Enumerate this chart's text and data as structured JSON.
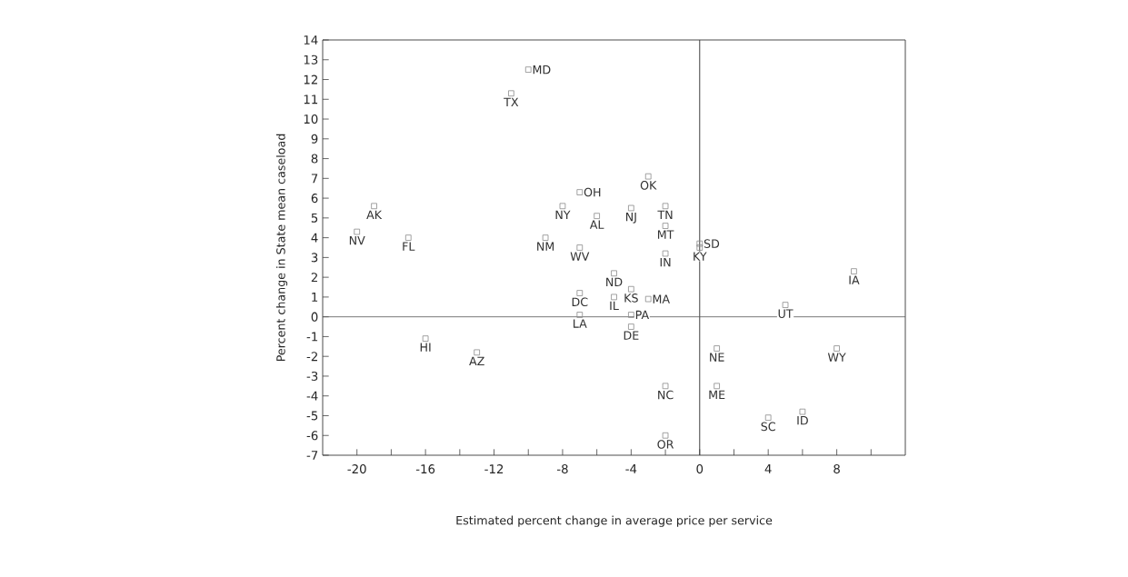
{
  "chart_data": {
    "type": "scatter",
    "xlabel": "Estimated percent change in average price per service",
    "ylabel": "Percent change in State mean caseload",
    "series": [
      {
        "color": "#8a8a8a",
        "x": [
          -19,
          -20,
          -17,
          -16,
          -13,
          -11,
          -10,
          -9,
          -8,
          -7,
          -6,
          -7,
          -7,
          -7,
          -5,
          -5,
          -4,
          -4,
          -4,
          -3,
          -4,
          -3,
          -2,
          -2,
          -2,
          -2,
          -2,
          0,
          0,
          1,
          1,
          4,
          6,
          5,
          8,
          9
        ],
        "values": [
          5.6,
          4.3,
          4.0,
          -1.1,
          -1.8,
          11.3,
          12.5,
          4.0,
          5.6,
          6.3,
          5.1,
          3.5,
          1.2,
          0.1,
          2.2,
          1.0,
          1.4,
          0.1,
          -0.5,
          0.9,
          5.5,
          7.1,
          5.6,
          4.6,
          3.2,
          -3.5,
          -6.0,
          3.7,
          3.5,
          -1.6,
          -3.5,
          -5.1,
          -4.8,
          0.6,
          -1.6,
          2.3
        ]
      }
    ],
    "annotations": [
      {
        "text": "AK",
        "x": -19,
        "y": 5.6
      },
      {
        "text": "NV",
        "x": -20,
        "y": 4.3
      },
      {
        "text": "FL",
        "x": -17,
        "y": 4.0
      },
      {
        "text": "HI",
        "x": -16,
        "y": -1.1
      },
      {
        "text": "AZ",
        "x": -13,
        "y": -1.8
      },
      {
        "text": "TX",
        "x": -11,
        "y": 11.3
      },
      {
        "text": "MD",
        "x": -10,
        "y": 12.5
      },
      {
        "text": "NM",
        "x": -9,
        "y": 4.0
      },
      {
        "text": "NY",
        "x": -8,
        "y": 5.6
      },
      {
        "text": "OH",
        "x": -7,
        "y": 6.3
      },
      {
        "text": "AL",
        "x": -6,
        "y": 5.1
      },
      {
        "text": "WV",
        "x": -7,
        "y": 3.5
      },
      {
        "text": "DC",
        "x": -7,
        "y": 1.2
      },
      {
        "text": "LA",
        "x": -7,
        "y": 0.1
      },
      {
        "text": "ND",
        "x": -5,
        "y": 2.2
      },
      {
        "text": "IL",
        "x": -5,
        "y": 1.0
      },
      {
        "text": "KS",
        "x": -4,
        "y": 1.4
      },
      {
        "text": "PA",
        "x": -4,
        "y": 0.1
      },
      {
        "text": "DE",
        "x": -4,
        "y": -0.5
      },
      {
        "text": "MA",
        "x": -3,
        "y": 0.9
      },
      {
        "text": "NJ",
        "x": -4,
        "y": 5.5
      },
      {
        "text": "OK",
        "x": -3,
        "y": 7.1
      },
      {
        "text": "TN",
        "x": -2,
        "y": 5.6
      },
      {
        "text": "MT",
        "x": -2,
        "y": 4.6
      },
      {
        "text": "IN",
        "x": -2,
        "y": 3.2
      },
      {
        "text": "NC",
        "x": -2,
        "y": -3.5
      },
      {
        "text": "OR",
        "x": -2,
        "y": -6.0
      },
      {
        "text": "SD",
        "x": 0,
        "y": 3.7
      },
      {
        "text": "KY",
        "x": 0,
        "y": 3.5
      },
      {
        "text": "NE",
        "x": 1,
        "y": -1.6
      },
      {
        "text": "ME",
        "x": 1,
        "y": -3.5
      },
      {
        "text": "SC",
        "x": 4,
        "y": -5.1
      },
      {
        "text": "ID",
        "x": 6,
        "y": -4.8
      },
      {
        "text": "UT",
        "x": 5,
        "y": 0.6
      },
      {
        "text": "WY",
        "x": 8,
        "y": -1.6
      },
      {
        "text": "IA",
        "x": 9,
        "y": 2.3
      }
    ],
    "ref_lines": [
      {
        "axis": "x",
        "value": 0
      },
      {
        "axis": "y",
        "value": 0
      }
    ],
    "xlim": [
      -22,
      12
    ],
    "ylim": [
      -7,
      14
    ],
    "xticks": [
      -20,
      {
        "value": -18,
        "label": null
      },
      -16,
      {
        "value": -14,
        "label": null
      },
      -12,
      {
        "value": -10,
        "label": null
      },
      -8,
      {
        "value": -6,
        "label": null
      },
      -4,
      {
        "value": -2,
        "label": null
      },
      0,
      {
        "value": 2,
        "label": null
      },
      4,
      {
        "value": 6,
        "label": null
      },
      8,
      {
        "value": 10,
        "label": null
      }
    ],
    "yticks": [
      -7,
      -6,
      -5,
      -4,
      -3,
      -2,
      -1,
      0,
      1,
      2,
      3,
      4,
      5,
      6,
      7,
      8,
      9,
      10,
      11,
      12,
      13,
      14
    ],
    "marker": "square",
    "grid": false
  }
}
